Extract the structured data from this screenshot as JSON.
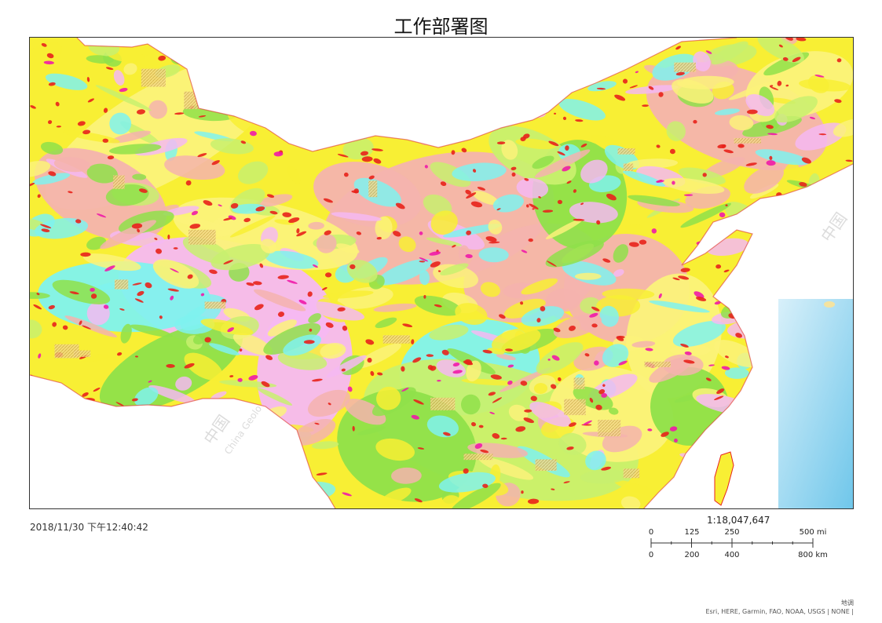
{
  "page": {
    "title": "工作部署图"
  },
  "map": {
    "watermark_lines": [
      "中国",
      "China Geolo"
    ],
    "colors": {
      "pink": "#f4b3ae",
      "yellow": "#f8ef34",
      "light_yellow": "#fbf27a",
      "lime": "#c8f06e",
      "green": "#8fe04a",
      "cyan": "#7ff2ee",
      "violet": "#f5b8f2",
      "red": "#e8221b",
      "magenta": "#f01aa8",
      "ocean": "#bfe4f3",
      "ocean_deep": "#6ec6ea"
    }
  },
  "footer": {
    "timestamp": "2018/11/30 下午12:40:42",
    "scale_ratio": "1:18,047,647",
    "scale_mi": {
      "labels": [
        "0",
        "125",
        "250",
        "500 mi"
      ],
      "values": [
        0,
        125,
        250,
        500
      ]
    },
    "scale_km": {
      "labels": [
        "0",
        "200",
        "400",
        "800 km"
      ],
      "values": [
        0,
        200,
        400,
        800
      ]
    },
    "credit_title": "地调",
    "credits": "Esri, HERE, Garmin, FAO, NOAA, USGS | NONE |"
  }
}
